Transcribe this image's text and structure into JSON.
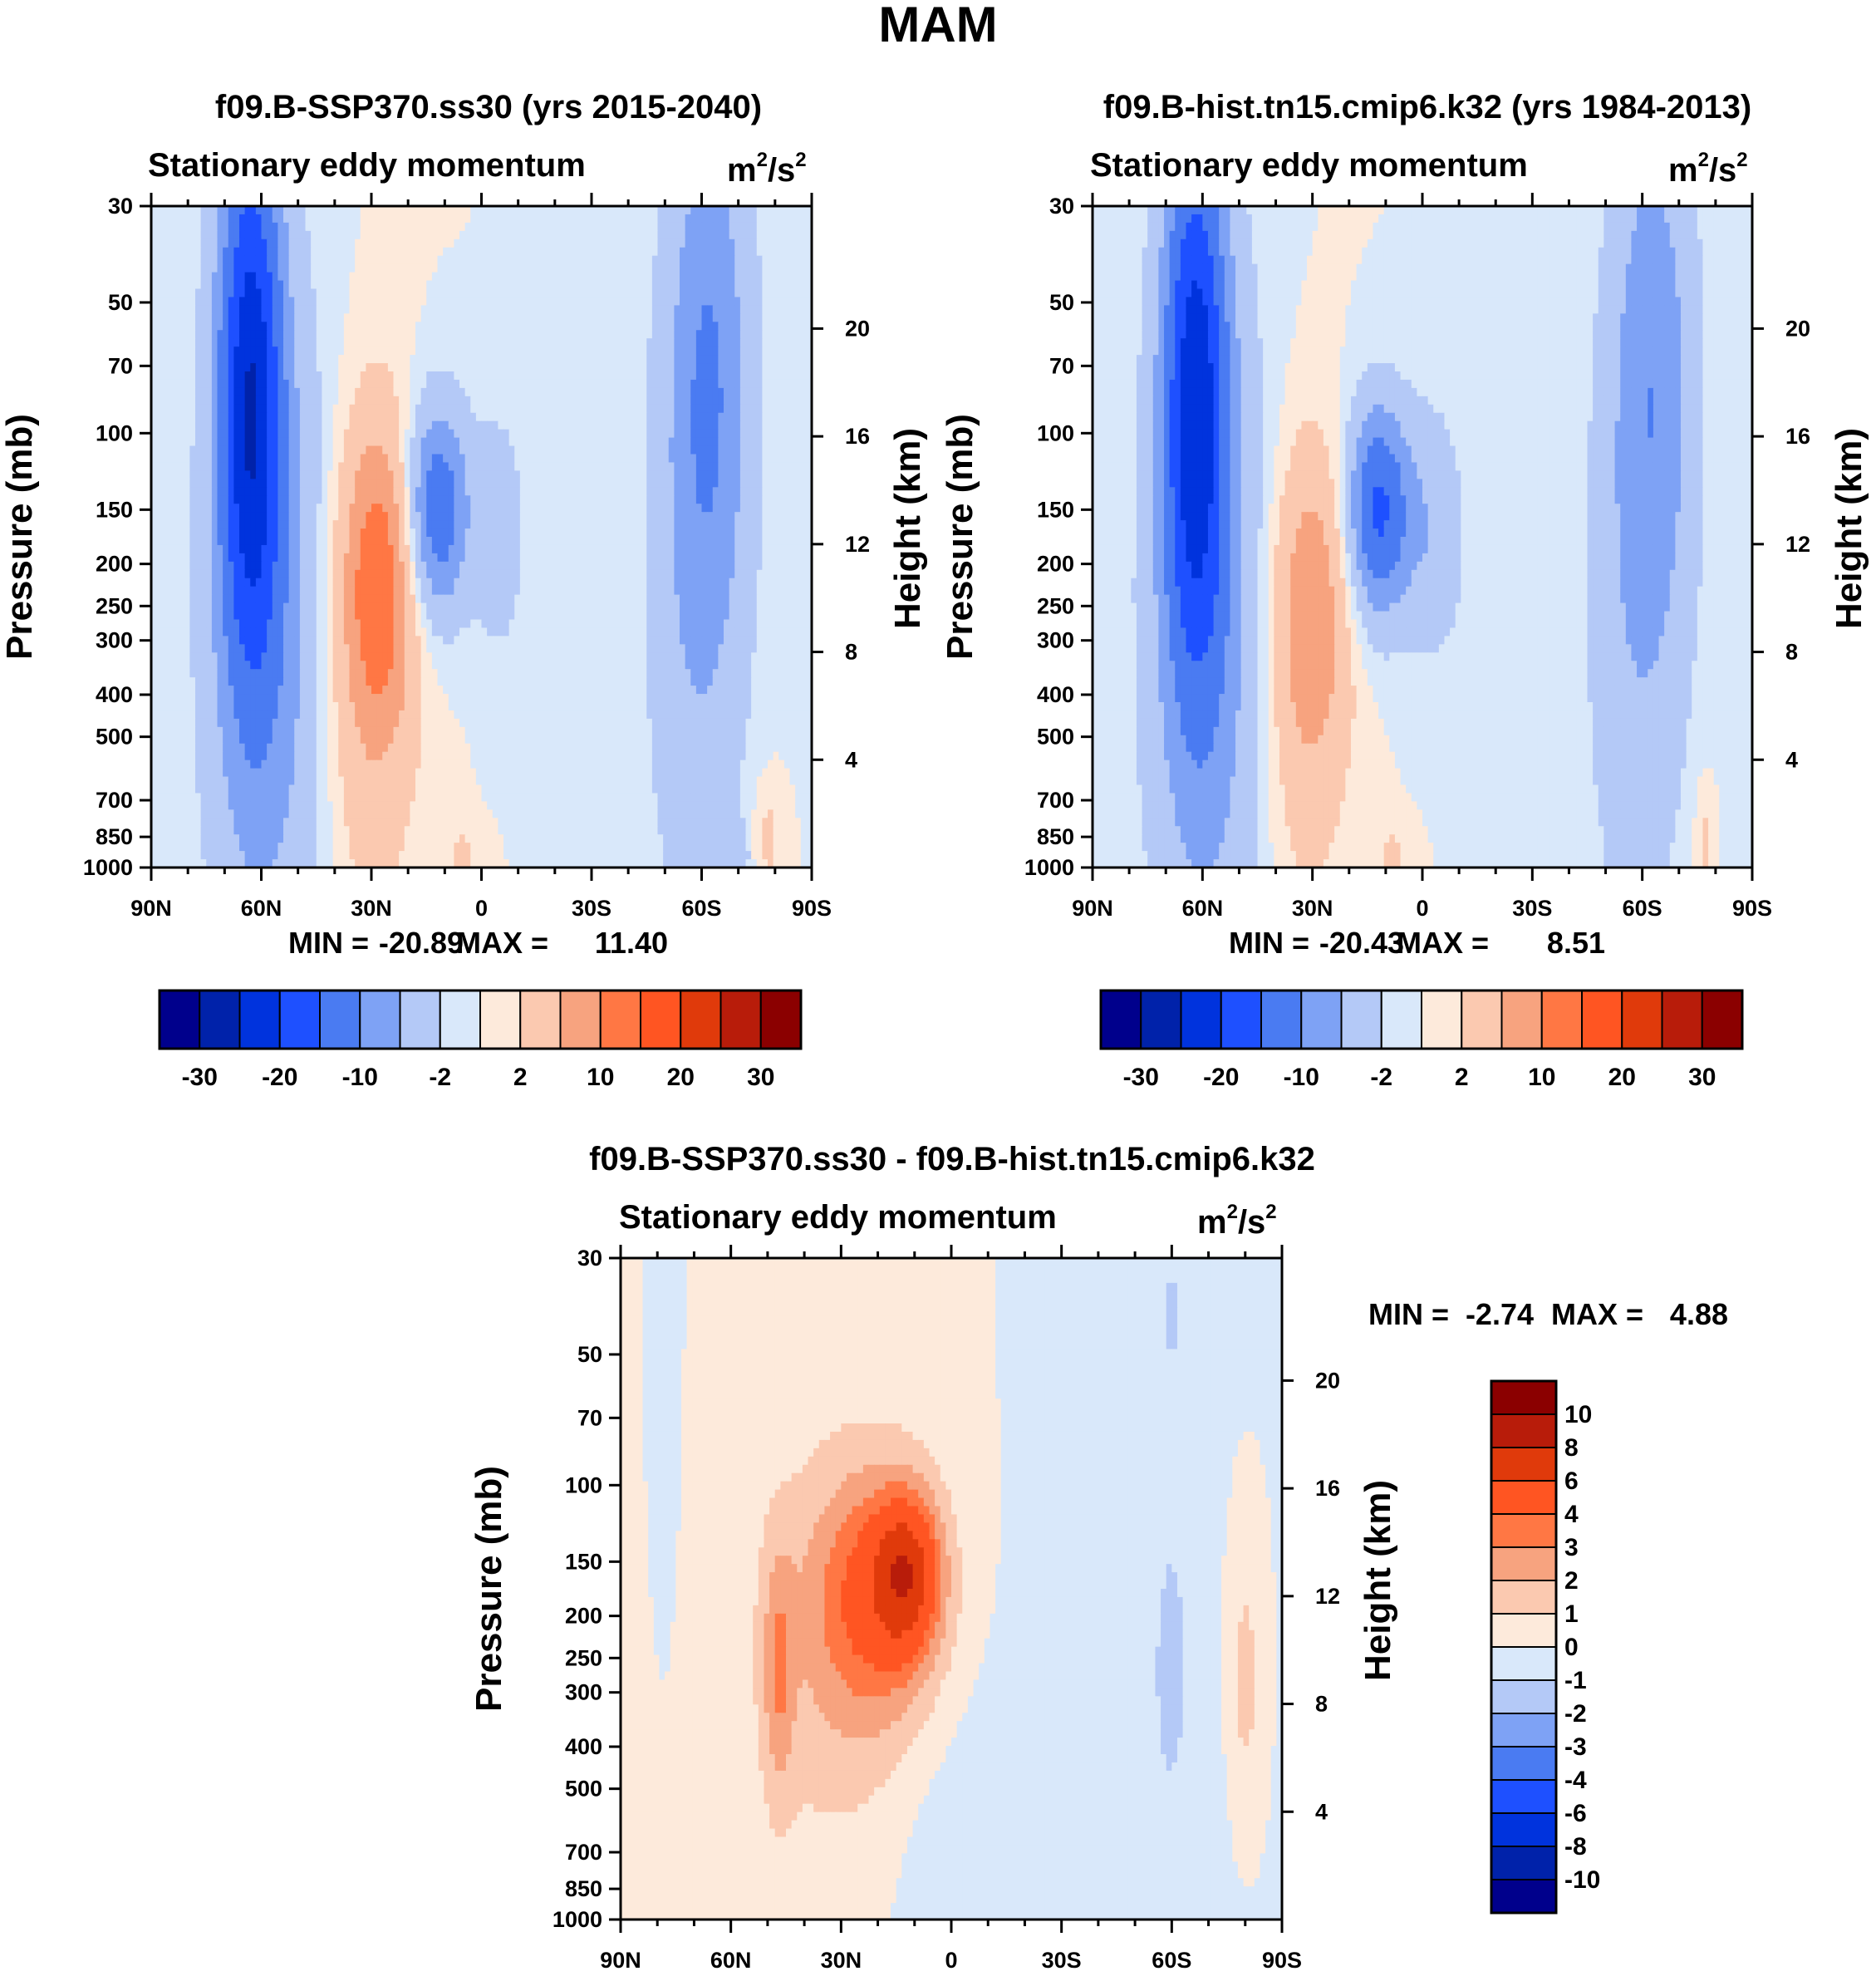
{
  "figure": {
    "title": "MAM"
  },
  "colors": {
    "ctl": [
      "#00008c",
      "#0022aa",
      "#0033dd",
      "#1e50ff",
      "#4a7bf2",
      "#7ea2f5",
      "#b4c9f7",
      "#d9e8fa",
      "#fdeadb",
      "#fbc9b0",
      "#f7a37f",
      "#ff7744",
      "#ff5522",
      "#e03a0b",
      "#b81c0a",
      "#8b0000"
    ],
    "diff": [
      "#00008c",
      "#0022aa",
      "#0033dd",
      "#1e50ff",
      "#4a7bf2",
      "#7ea2f5",
      "#b4c9f7",
      "#d9e8fa",
      "#fdeadb",
      "#fbc9b0",
      "#f7a37f",
      "#ff7744",
      "#ff5522",
      "#e03a0b",
      "#b81c0a",
      "#8b0000"
    ]
  },
  "chart_data": [
    {
      "type": "heatmap",
      "title": "f09.B-SSP370.ss30 (yrs 2015-2040)",
      "left_title": "Stationary eddy momentum",
      "units": "m2/s2",
      "ylabel": "Pressure (mb)",
      "ylabel_right": "Height (km)",
      "xticks": [
        "90N",
        "60N",
        "30N",
        "0",
        "30S",
        "60S",
        "90S"
      ],
      "yticks": [
        30,
        50,
        70,
        100,
        150,
        200,
        250,
        300,
        400,
        500,
        700,
        850,
        1000
      ],
      "yticks_right": [
        20,
        16,
        12,
        8,
        4
      ],
      "min": "-20.89",
      "max": "11.40",
      "min_label": "MIN =",
      "max_label": "MAX =",
      "colorbar_labels": [
        "-30",
        "-20",
        "-10",
        "-2",
        "2",
        "10",
        "20",
        "30"
      ],
      "features": [
        {
          "lat": 63,
          "p": 80,
          "value": -21,
          "dlat": 6,
          "dlogp": 0.45
        },
        {
          "lat": 58,
          "p": 300,
          "value": -8,
          "dlat": 12,
          "dlogp": 0.6
        },
        {
          "lat": -62,
          "p": 70,
          "value": -9,
          "dlat": 8,
          "dlogp": 0.45
        },
        {
          "lat": -58,
          "p": 300,
          "value": -4,
          "dlat": 10,
          "dlogp": 0.55
        },
        {
          "lat": 12,
          "p": 150,
          "value": -14,
          "dlat": 6,
          "dlogp": 0.17
        },
        {
          "lat": -5,
          "p": 170,
          "value": -4,
          "dlat": 5,
          "dlogp": 0.2
        },
        {
          "lat": 28,
          "p": 220,
          "value": 11,
          "dlat": 7,
          "dlogp": 0.25
        },
        {
          "lat": 32,
          "p": 400,
          "value": 4,
          "dlat": 10,
          "dlogp": 0.45
        },
        {
          "lat": 5,
          "p": 950,
          "value": 3,
          "dlat": 3,
          "dlogp": 0.05
        },
        {
          "lat": -78,
          "p": 850,
          "value": 3,
          "dlat": 3,
          "dlogp": 0.1
        },
        {
          "lat": -70,
          "p": 950,
          "value": -4,
          "dlat": 2,
          "dlogp": 0.05
        }
      ]
    },
    {
      "type": "heatmap",
      "title": "f09.B-hist.tn15.cmip6.k32 (yrs 1984-2013)",
      "left_title": "Stationary eddy momentum",
      "units": "m2/s2",
      "ylabel": "Pressure (mb)",
      "ylabel_right": "Height (km)",
      "xticks": [
        "90N",
        "60N",
        "30N",
        "0",
        "30S",
        "60S",
        "90S"
      ],
      "yticks": [
        30,
        50,
        70,
        100,
        150,
        200,
        250,
        300,
        400,
        500,
        700,
        850,
        1000
      ],
      "yticks_right": [
        20,
        16,
        12,
        8,
        4
      ],
      "min": "-20.43",
      "max": "8.51",
      "min_label": "MIN =",
      "max_label": "MAX =",
      "colorbar_labels": [
        "-30",
        "-20",
        "-10",
        "-2",
        "2",
        "10",
        "20",
        "30"
      ],
      "features": [
        {
          "lat": 62,
          "p": 80,
          "value": -20,
          "dlat": 6,
          "dlogp": 0.45
        },
        {
          "lat": 58,
          "p": 300,
          "value": -8,
          "dlat": 12,
          "dlogp": 0.6
        },
        {
          "lat": -63,
          "p": 70,
          "value": -8,
          "dlat": 8,
          "dlogp": 0.45
        },
        {
          "lat": -58,
          "p": 300,
          "value": -4,
          "dlat": 10,
          "dlogp": 0.55
        },
        {
          "lat": 12,
          "p": 150,
          "value": -16,
          "dlat": 6,
          "dlogp": 0.17
        },
        {
          "lat": -3,
          "p": 170,
          "value": -5,
          "dlat": 6,
          "dlogp": 0.2
        },
        {
          "lat": 30,
          "p": 260,
          "value": 8,
          "dlat": 7,
          "dlogp": 0.25
        },
        {
          "lat": 35,
          "p": 450,
          "value": 3,
          "dlat": 10,
          "dlogp": 0.45
        },
        {
          "lat": 8,
          "p": 950,
          "value": 3,
          "dlat": 3,
          "dlogp": 0.05
        },
        {
          "lat": -77,
          "p": 850,
          "value": 3,
          "dlat": 2,
          "dlogp": 0.1
        }
      ]
    },
    {
      "type": "heatmap",
      "title": "f09.B-SSP370.ss30 - f09.B-hist.tn15.cmip6.k32",
      "left_title": "Stationary eddy momentum",
      "units": "m2/s2",
      "ylabel": "Pressure (mb)",
      "ylabel_right": "Height (km)",
      "xticks": [
        "90N",
        "60N",
        "30N",
        "0",
        "30S",
        "60S",
        "90S"
      ],
      "yticks": [
        30,
        50,
        70,
        100,
        150,
        200,
        250,
        300,
        400,
        500,
        700,
        850,
        1000
      ],
      "yticks_right": [
        20,
        16,
        12,
        8,
        4
      ],
      "min": "-2.74",
      "max": "4.88",
      "min_label": "MIN =",
      "max_label": "MAX =",
      "colorbar_labels": [
        "10",
        "8",
        "6",
        "4",
        "3",
        "2",
        "1",
        "0",
        "-1",
        "-2",
        "-3",
        "-4",
        "-6",
        "-8",
        "-10"
      ],
      "features": [
        {
          "lat": 12,
          "p": 160,
          "value": 4.8,
          "dlat": 6,
          "dlogp": 0.12
        },
        {
          "lat": 20,
          "p": 180,
          "value": 3.5,
          "dlat": 12,
          "dlogp": 0.2
        },
        {
          "lat": 30,
          "p": 250,
          "value": 1.5,
          "dlat": 20,
          "dlogp": 0.4
        },
        {
          "lat": 47,
          "p": 270,
          "value": 2.2,
          "dlat": 3,
          "dlogp": 0.2
        },
        {
          "lat": -60,
          "p": 250,
          "value": -1.3,
          "dlat": 3,
          "dlogp": 0.2
        },
        {
          "lat": -80,
          "p": 280,
          "value": 1.5,
          "dlat": 3,
          "dlogp": 0.2
        },
        {
          "lat": -60,
          "p": 40,
          "value": -1.2,
          "dlat": 3,
          "dlogp": 0.12
        },
        {
          "lat": 78,
          "p": 60,
          "value": -1.0,
          "dlat": 2,
          "dlogp": 0.3
        },
        {
          "lat": 0,
          "p": 700,
          "value": -0.8,
          "dlat": 15,
          "dlogp": 0.3
        },
        {
          "lat": -40,
          "p": 500,
          "value": -0.7,
          "dlat": 20,
          "dlogp": 0.5
        }
      ]
    }
  ]
}
